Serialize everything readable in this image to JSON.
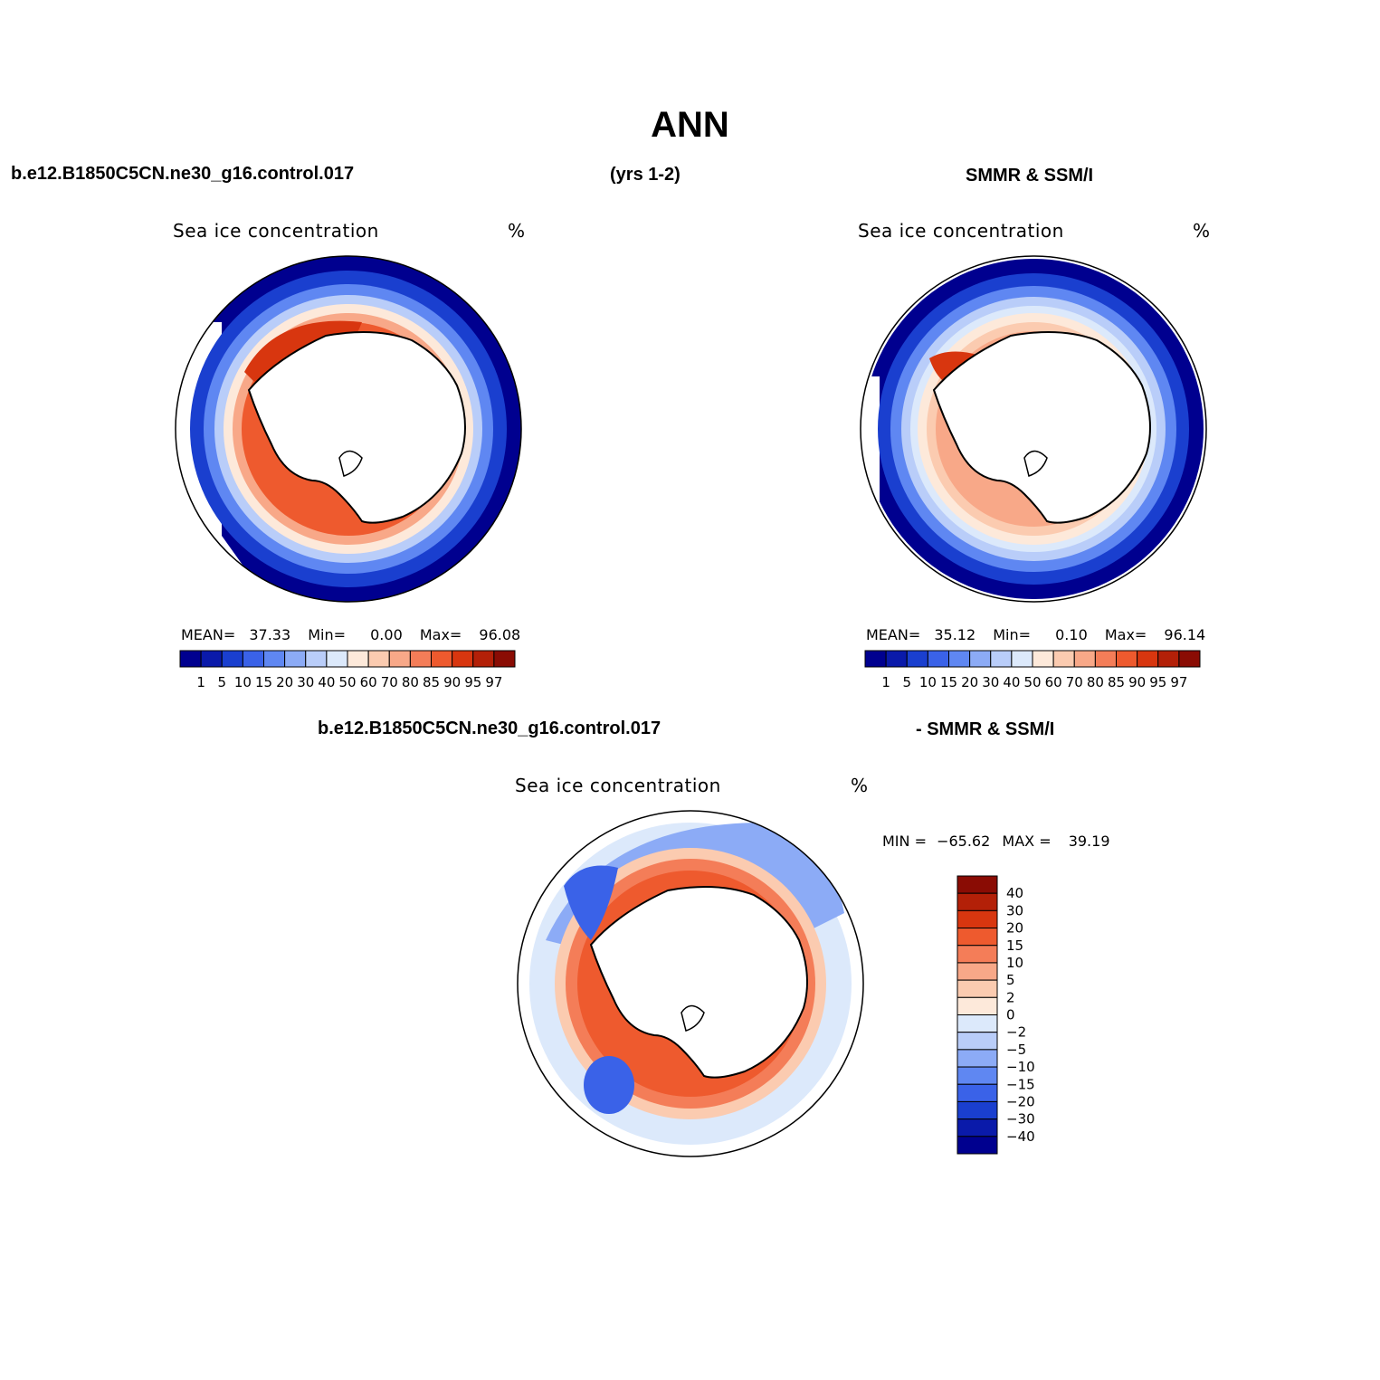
{
  "header": {
    "season": "ANN",
    "model_case": "b.e12.B1850C5CN.ne30_g16.control.017",
    "years": "(yrs 1-2)",
    "obs_name": "SMMR & SSM/I"
  },
  "diff_header": {
    "model_case": "b.e12.B1850C5CN.ne30_g16.control.017",
    "obs_label": "- SMMR & SSM/I"
  },
  "panels": [
    {
      "field": "Sea ice concentration",
      "units": "%",
      "stats": {
        "mean_label": "MEAN=",
        "mean": "37.33",
        "min_label": "Min=",
        "min": "0.00",
        "max_label": "Max=",
        "max": "96.08"
      }
    },
    {
      "field": "Sea ice concentration",
      "units": "%",
      "stats": {
        "mean_label": "MEAN=",
        "mean": "35.12",
        "min_label": "Min=",
        "min": "0.10",
        "max_label": "Max=",
        "max": "96.14"
      }
    },
    {
      "field": "Sea ice concentration",
      "units": "%",
      "stats": {
        "min_label": "MIN =",
        "min": "−65.62",
        "max_label": "MAX =",
        "max": "39.19"
      }
    }
  ],
  "abs_colorbar": {
    "labels": [
      "1",
      "5",
      "10",
      "15",
      "20",
      "30",
      "40",
      "50",
      "60",
      "70",
      "80",
      "85",
      "90",
      "95",
      "97"
    ],
    "colors": [
      "#00008f",
      "#0a1aaa",
      "#1a3fcf",
      "#3a62e8",
      "#5f87f2",
      "#8cabf6",
      "#b9cdf9",
      "#dce9fb",
      "#fde9da",
      "#fbcbb0",
      "#f8a888",
      "#f47d58",
      "#ee5a2e",
      "#d8360f",
      "#b32008",
      "#8a0c04"
    ]
  },
  "diff_colorbar": {
    "labels": [
      "40",
      "30",
      "20",
      "15",
      "10",
      "5",
      "2",
      "0",
      "−2",
      "−5",
      "−10",
      "−15",
      "−20",
      "−30",
      "−40"
    ],
    "colors": [
      "#8a0c04",
      "#b32008",
      "#d8360f",
      "#ee5a2e",
      "#f47d58",
      "#f8a888",
      "#fbcbb0",
      "#fde9da",
      "#dce9fb",
      "#b9cdf9",
      "#8cabf6",
      "#5f87f2",
      "#3a62e8",
      "#1a3fcf",
      "#0a1aaa",
      "#00008f"
    ]
  }
}
